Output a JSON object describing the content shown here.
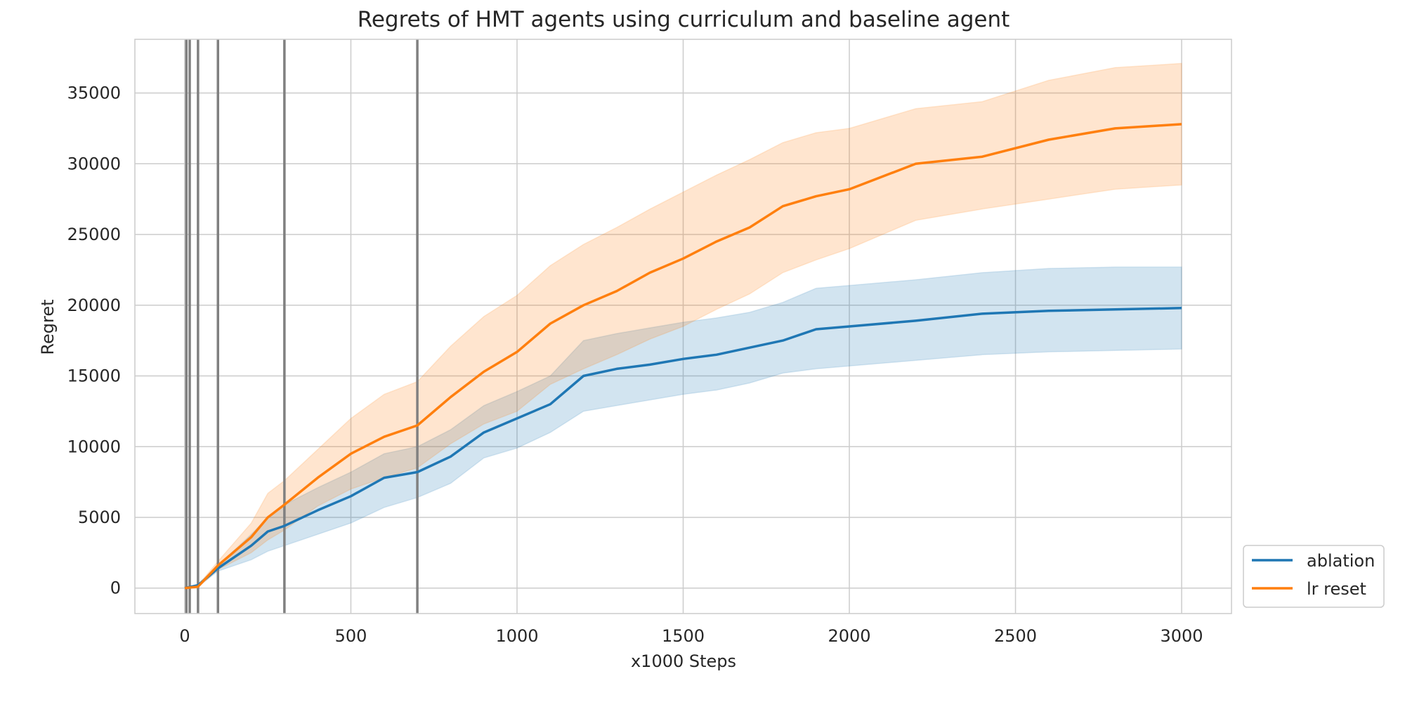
{
  "chart_data": {
    "type": "line",
    "title": "Regrets of HMT agents using curriculum and baseline agent",
    "xlabel": "x1000 Steps",
    "ylabel": "Regret",
    "xlim": [
      -150,
      3150
    ],
    "ylim": [
      -1800,
      38800
    ],
    "xticks": [
      0,
      500,
      1000,
      1500,
      2000,
      2500,
      3000
    ],
    "yticks": [
      0,
      5000,
      10000,
      15000,
      20000,
      25000,
      30000,
      35000
    ],
    "grid": true,
    "legend_position": "outside-bottom-right",
    "curriculum_lines": [
      5,
      15,
      40,
      100,
      300,
      700
    ],
    "curriculum_line_color": "#808080",
    "series": [
      {
        "name": "ablation",
        "color": "#1f77b4",
        "x": [
          0,
          40,
          100,
          200,
          250,
          300,
          400,
          500,
          600,
          700,
          800,
          900,
          1000,
          1100,
          1200,
          1300,
          1400,
          1500,
          1600,
          1700,
          1800,
          1900,
          2000,
          2200,
          2400,
          2600,
          2800,
          3000
        ],
        "mean": [
          0,
          200,
          1400,
          3000,
          4000,
          4400,
          5500,
          6500,
          7800,
          8200,
          9300,
          11000,
          12000,
          13000,
          15000,
          15500,
          15800,
          16200,
          16500,
          17000,
          17500,
          18300,
          18500,
          18900,
          19400,
          19600,
          19700,
          19800
        ],
        "lower": [
          0,
          100,
          1200,
          2000,
          2600,
          3000,
          3800,
          4600,
          5700,
          6400,
          7400,
          9200,
          9900,
          11000,
          12500,
          12900,
          13300,
          13700,
          14000,
          14500,
          15200,
          15500,
          15700,
          16100,
          16500,
          16700,
          16800,
          16900
        ],
        "upper": [
          0,
          300,
          1600,
          3800,
          5000,
          5900,
          7100,
          8200,
          9500,
          10000,
          11200,
          12900,
          13900,
          15000,
          17500,
          18000,
          18400,
          18800,
          19100,
          19500,
          20200,
          21200,
          21400,
          21800,
          22300,
          22600,
          22700,
          22700
        ]
      },
      {
        "name": "lr reset",
        "color": "#ff7f0e",
        "x": [
          0,
          40,
          100,
          200,
          250,
          300,
          400,
          500,
          600,
          700,
          800,
          900,
          1000,
          1100,
          1200,
          1300,
          1400,
          1500,
          1600,
          1700,
          1800,
          1900,
          2000,
          2200,
          2400,
          2600,
          2800,
          3000
        ],
        "mean": [
          0,
          100,
          1600,
          3600,
          5000,
          5900,
          7800,
          9500,
          10700,
          11500,
          13500,
          15300,
          16700,
          18700,
          20000,
          21000,
          22300,
          23300,
          24500,
          25500,
          27000,
          27700,
          28200,
          30000,
          30500,
          31700,
          32500,
          32800
        ],
        "lower": [
          0,
          50,
          1300,
          2500,
          3400,
          4100,
          5800,
          7000,
          7800,
          8500,
          10200,
          11600,
          12500,
          14400,
          15500,
          16500,
          17600,
          18500,
          19700,
          20800,
          22300,
          23200,
          24000,
          26000,
          26800,
          27500,
          28200,
          28500
        ],
        "upper": [
          0,
          200,
          1900,
          4600,
          6700,
          7600,
          9800,
          12000,
          13700,
          14600,
          17100,
          19200,
          20700,
          22800,
          24300,
          25500,
          26800,
          28000,
          29200,
          30300,
          31500,
          32200,
          32500,
          33900,
          34400,
          35900,
          36800,
          37100
        ]
      }
    ]
  }
}
